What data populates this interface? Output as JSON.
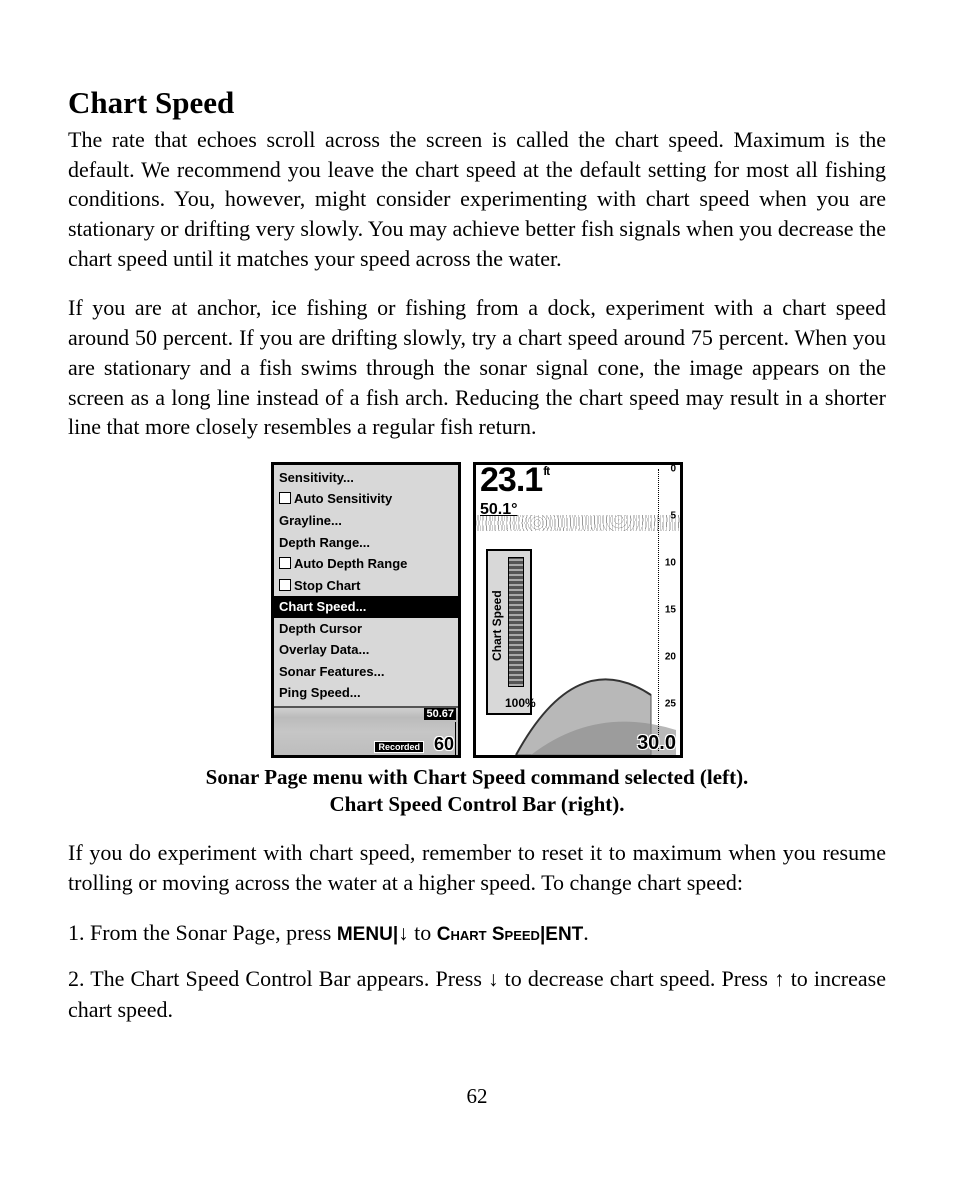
{
  "heading": "Chart Speed",
  "para1": "The rate that echoes scroll across the screen is called the chart speed. Maximum is the default. We recommend you leave the chart speed at the default setting for most all fishing conditions. You, however, might consider experimenting with chart speed when you are stationary or drifting very slowly. You may achieve better fish signals when you decrease the chart speed until it matches your speed across the water.",
  "para2": "If you are at anchor, ice fishing or fishing from a dock, experiment with a chart speed around 50 percent. If you are drifting slowly, try a chart speed around 75 percent. When you are stationary and a fish swims through the sonar signal cone, the image appears on the screen as a long line instead of a fish arch. Reducing the chart speed may result in a shorter line that more closely resembles a regular fish return.",
  "menu": {
    "items": [
      {
        "label": "Sensitivity...",
        "checkbox": false
      },
      {
        "label": "Auto Sensitivity",
        "checkbox": true
      },
      {
        "label": "Grayline...",
        "checkbox": false
      },
      {
        "label": "Depth Range...",
        "checkbox": false
      },
      {
        "label": "Auto Depth Range",
        "checkbox": true
      },
      {
        "label": "Stop Chart",
        "checkbox": true
      },
      {
        "label": "Chart Speed...",
        "checkbox": false,
        "highlighted": true
      },
      {
        "label": "Depth Cursor",
        "checkbox": false
      },
      {
        "label": "Overlay Data...",
        "checkbox": false
      },
      {
        "label": "Sonar Features...",
        "checkbox": false
      },
      {
        "label": "Ping Speed...",
        "checkbox": false
      }
    ],
    "bottom_value": "50.67",
    "recorded": "Recorded",
    "depth": "60"
  },
  "sonar": {
    "depth_value": "23.1",
    "depth_unit": "ft",
    "temp": "50.1°",
    "bar_label": "Chart Speed",
    "bar_percent": "100%",
    "scale_labels": [
      "0",
      "5",
      "10",
      "15",
      "20",
      "25",
      "30.0"
    ],
    "bottom_depth": "30.0",
    "arch_fill": "#b8b8b8"
  },
  "caption_line1": "Sonar Page menu with Chart Speed command selected (left).",
  "caption_line2": "Chart Speed Control Bar (right).",
  "para3": "If you do experiment with chart speed, remember to reset it to maximum when you resume trolling or moving across the water at a higher speed. To change chart speed:",
  "step1_pre": "1. From the Sonar Page, press ",
  "step1_menu": "MENU",
  "step1_sep1": "|",
  "step1_arrow": "↓",
  "step1_to": " to ",
  "step1_cmd": "Chart Speed",
  "step1_sep2": "|",
  "step1_ent": "ENT",
  "step1_end": ".",
  "step2_pre": "2. The Chart Speed Control Bar appears. Press ",
  "step2_arrow_down": "↓",
  "step2_mid": " to decrease chart speed. Press ",
  "step2_arrow_up": "↑",
  "step2_end": " to increase chart speed.",
  "page_number": "62"
}
